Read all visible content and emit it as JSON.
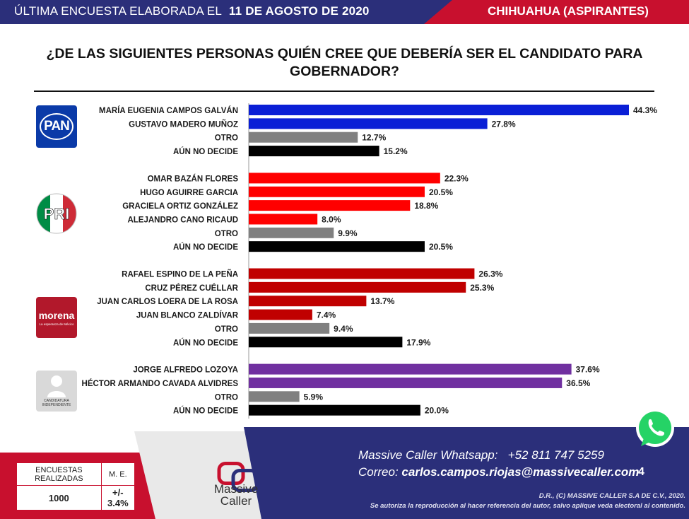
{
  "header": {
    "prefix": "ÚLTIMA ENCUESTA ELABORADA EL",
    "date": "11 DE AGOSTO DE 2020",
    "region": "CHIHUAHUA (ASPIRANTES)"
  },
  "question_line1": "¿DE LAS SIGUIENTES PERSONAS QUIÉN CREE QUE DEBERÍA SER EL CANDIDATO PARA",
  "question_line2": "GOBERNADOR?",
  "logos": {
    "pan": "PAN",
    "pri": "PRI",
    "morena": "morena",
    "morena_sub": "La esperanza de México",
    "independent_line1": "CANDIDATURA",
    "independent_line2": "INDEPENDIENTE"
  },
  "colors": {
    "pan_candidate": "#0a1fd6",
    "pri_candidate": "#ff0000",
    "morena_candidate": "#c00000",
    "independent_candidate": "#7030a0",
    "otro": "#808080",
    "aun_no_decide": "#000000"
  },
  "chart_data": {
    "type": "bar",
    "orientation": "horizontal",
    "groups": [
      {
        "party": "PAN",
        "bars": [
          {
            "label": "MARÍA EUGENIA CAMPOS GALVÁN",
            "value": 44.3,
            "value_label": "44.3%",
            "kind": "candidate"
          },
          {
            "label": "GUSTAVO MADERO MUÑOZ",
            "value": 27.8,
            "value_label": "27.8%",
            "kind": "candidate"
          },
          {
            "label": "OTRO",
            "value": 12.7,
            "value_label": "12.7%",
            "kind": "otro"
          },
          {
            "label": "AÚN NO DECIDE",
            "value": 15.2,
            "value_label": "15.2%",
            "kind": "undecided"
          }
        ]
      },
      {
        "party": "PRI",
        "bars": [
          {
            "label": "OMAR BAZÁN FLORES",
            "value": 22.3,
            "value_label": "22.3%",
            "kind": "candidate"
          },
          {
            "label": "HUGO AGUIRRE GARCIA",
            "value": 20.5,
            "value_label": "20.5%",
            "kind": "candidate"
          },
          {
            "label": "GRACIELA ORTIZ GONZÁLEZ",
            "value": 18.8,
            "value_label": "18.8%",
            "kind": "candidate"
          },
          {
            "label": "ALEJANDRO CANO RICAUD",
            "value": 8.0,
            "value_label": "8.0%",
            "kind": "candidate"
          },
          {
            "label": "OTRO",
            "value": 9.9,
            "value_label": "9.9%",
            "kind": "otro"
          },
          {
            "label": "AÚN NO DECIDE",
            "value": 20.5,
            "value_label": "20.5%",
            "kind": "undecided"
          }
        ]
      },
      {
        "party": "MORENA",
        "bars": [
          {
            "label": "RAFAEL ESPINO DE LA PEÑA",
            "value": 26.3,
            "value_label": "26.3%",
            "kind": "candidate"
          },
          {
            "label": "CRUZ PÉREZ CUÉLLAR",
            "value": 25.3,
            "value_label": "25.3%",
            "kind": "candidate"
          },
          {
            "label": "JUAN CARLOS LOERA DE LA ROSA",
            "value": 13.7,
            "value_label": "13.7%",
            "kind": "candidate"
          },
          {
            "label": "JUAN BLANCO ZALDÍVAR",
            "value": 7.4,
            "value_label": "7.4%",
            "kind": "candidate"
          },
          {
            "label": "OTRO",
            "value": 9.4,
            "value_label": "9.4%",
            "kind": "otro"
          },
          {
            "label": "AÚN NO DECIDE",
            "value": 17.9,
            "value_label": "17.9%",
            "kind": "undecided"
          }
        ]
      },
      {
        "party": "INDEPENDIENTE",
        "bars": [
          {
            "label": "JORGE ALFREDO LOZOYA",
            "value": 37.6,
            "value_label": "37.6%",
            "kind": "candidate"
          },
          {
            "label": "HÉCTOR ARMANDO CAVADA ALVIDRES",
            "value": 36.5,
            "value_label": "36.5%",
            "kind": "candidate"
          },
          {
            "label": "OTRO",
            "value": 5.9,
            "value_label": "5.9%",
            "kind": "otro"
          },
          {
            "label": "AÚN NO DECIDE",
            "value": 20.0,
            "value_label": "20.0%",
            "kind": "undecided"
          }
        ]
      }
    ],
    "xlim": [
      0,
      45
    ],
    "grid": false,
    "legend": "none"
  },
  "footer": {
    "stats_header_1": "ENCUESTAS REALIZADAS",
    "stats_header_2": "M. E.",
    "stats_value_1": "1000",
    "stats_value_2": "+/- 3.4%",
    "brand_line1": "Massive",
    "brand_line2": "Caller",
    "whatsapp_label": "Massive Caller Whatsapp:",
    "whatsapp_number": "+52 811 747 5259",
    "email_label": "Correo:",
    "email_address": "carlos.campos.riojas@massivecaller.com",
    "page_number": "4",
    "copyright": "D.R., (C) MASSIVE CALLER S.A DE C.V., 2020.",
    "notice": "Se autoriza la reproducción al hacer referencia del autor, salvo aplique veda electoral al contenido."
  }
}
